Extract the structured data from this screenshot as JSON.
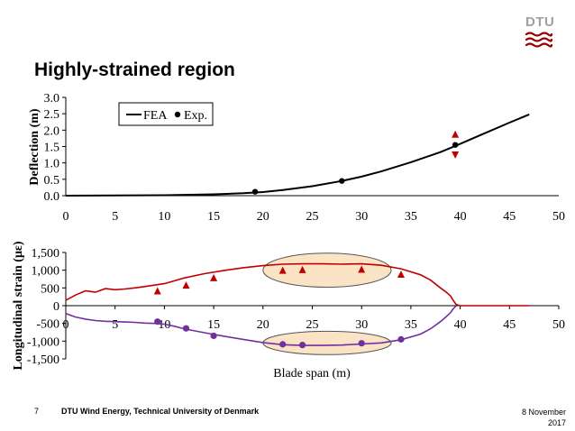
{
  "slide": {
    "title": "Highly-strained region",
    "logo": "DTU",
    "page_number": "7",
    "footer_org": "DTU Wind Energy, Technical University of Denmark",
    "date_line1": "8 November",
    "date_line2": "2017"
  },
  "colors": {
    "fea_top": "#000000",
    "strain_pos": "#c00000",
    "strain_neg": "#7030a0",
    "highlight_fill": "#fbe3c5",
    "logo_red": "#990000"
  },
  "chart_data": [
    {
      "type": "line",
      "ylabel": "Deflection (m)",
      "xlabel": "",
      "xlim": [
        0,
        50
      ],
      "ylim": [
        0,
        3
      ],
      "x_ticks": [
        "0",
        "5",
        "10",
        "15",
        "20",
        "25",
        "30",
        "35",
        "40",
        "45",
        "50"
      ],
      "y_ticks": [
        "0.0",
        "0.5",
        "1.0",
        "1.5",
        "2.0",
        "2.5",
        "3.0"
      ],
      "legend": {
        "position": "top-left",
        "fea": "FEA",
        "exp": "Exp."
      },
      "series": [
        {
          "name": "FEA",
          "kind": "line",
          "x": [
            0,
            5,
            10,
            15,
            18,
            20,
            22,
            25,
            28,
            30,
            32,
            35,
            38,
            40,
            42,
            45,
            47
          ],
          "y": [
            0,
            0.005,
            0.015,
            0.04,
            0.075,
            0.11,
            0.17,
            0.29,
            0.45,
            0.58,
            0.74,
            1.02,
            1.33,
            1.58,
            1.84,
            2.23,
            2.48
          ]
        },
        {
          "name": "Exp.",
          "kind": "marker",
          "x": [
            19.2,
            28,
            39.5
          ],
          "y": [
            0.12,
            0.45,
            1.55
          ]
        }
      ],
      "error_marker": {
        "x": 39.5,
        "up": 1.88,
        "down": 1.24
      }
    },
    {
      "type": "line",
      "ylabel": "Longitudinal strain (με)",
      "xlabel": "Blade span (m)",
      "xlim": [
        0,
        50
      ],
      "ylim": [
        -1500,
        1500
      ],
      "x_ticks": [
        "0",
        "5",
        "10",
        "15",
        "20",
        "25",
        "30",
        "35",
        "40",
        "45",
        "50"
      ],
      "y_ticks": [
        "1,500",
        "1,000",
        "500",
        "0",
        "-500",
        "-1,000",
        "-1,500"
      ],
      "series": [
        {
          "name": "strain-top",
          "kind": "line",
          "x": [
            0,
            1,
            2,
            3,
            4,
            5,
            6,
            7,
            8,
            9,
            10,
            11,
            12,
            14,
            16,
            18,
            20,
            22,
            24,
            26,
            28,
            30,
            32,
            34,
            36,
            37,
            38,
            38.5,
            39,
            39.3,
            39.6,
            40,
            42,
            44,
            46,
            47
          ],
          "y": [
            150,
            300,
            420,
            380,
            480,
            450,
            470,
            500,
            540,
            580,
            620,
            700,
            780,
            900,
            990,
            1070,
            1130,
            1170,
            1180,
            1180,
            1170,
            1180,
            1140,
            1040,
            870,
            720,
            500,
            400,
            280,
            150,
            30,
            0,
            0,
            0,
            0,
            0
          ]
        },
        {
          "name": "strain-bottom",
          "kind": "line",
          "x": [
            0,
            1,
            2,
            3,
            4,
            5,
            6,
            7,
            8,
            9,
            10,
            11,
            12,
            14,
            16,
            18,
            20,
            22,
            24,
            26,
            28,
            30,
            32,
            34,
            36,
            37,
            38,
            38.5,
            39,
            39.3,
            39.6
          ],
          "y": [
            -220,
            -320,
            -380,
            -420,
            -440,
            -450,
            -460,
            -470,
            -490,
            -500,
            -520,
            -580,
            -650,
            -760,
            -860,
            -950,
            -1040,
            -1100,
            -1120,
            -1120,
            -1110,
            -1080,
            -1050,
            -960,
            -800,
            -650,
            -450,
            -330,
            -200,
            -90,
            0
          ]
        },
        {
          "name": "strain-top-exp",
          "kind": "triangle",
          "x": [
            9.3,
            12.2,
            15,
            22,
            24,
            30,
            34
          ],
          "y": [
            420,
            580,
            790,
            1000,
            1020,
            1030,
            890
          ]
        },
        {
          "name": "strain-bottom-exp",
          "kind": "circle",
          "x": [
            9.3,
            12.2,
            15,
            22,
            24,
            30,
            34
          ],
          "y": [
            -450,
            -640,
            -850,
            -1090,
            -1110,
            -1060,
            -950
          ]
        }
      ],
      "highlights": [
        {
          "cx": 26.5,
          "cy": 1000,
          "rx": 6.5,
          "ry": 480
        },
        {
          "cx": 26.5,
          "cy": -1050,
          "rx": 6.5,
          "ry": 330
        }
      ]
    }
  ]
}
